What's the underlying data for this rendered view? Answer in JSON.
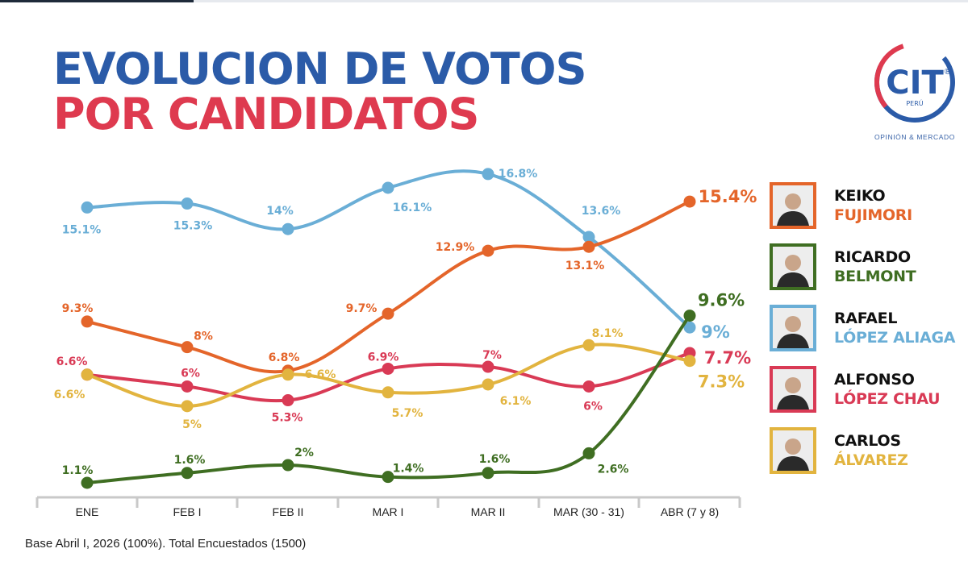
{
  "title": {
    "line1": "EVOLUCION DE VOTOS",
    "line2": "POR CANDIDATOS",
    "line1_color": "#2b5ba8",
    "line2_color": "#de3a4f"
  },
  "logo": {
    "text": "CIT",
    "registered": "®",
    "sub": "PERÚ",
    "tagline": "OPINIÓN & MERCADO"
  },
  "chart_data": {
    "type": "line",
    "categories": [
      "ENE",
      "FEB I",
      "FEB II",
      "MAR I",
      "MAR II",
      "MAR (30 - 31)",
      "ABR (7 y 8)"
    ],
    "series": [
      {
        "name": "RAFAEL LÓPEZ ALIAGA",
        "color": "#6aaed6",
        "values": [
          15.1,
          15.3,
          14,
          16.1,
          16.8,
          13.6,
          9
        ],
        "labels": [
          "15.1%",
          "15.3%",
          "14%",
          "16.1%",
          "16.8%",
          "13.6%",
          "9%"
        ]
      },
      {
        "name": "KEIKO FUJIMORI",
        "color": "#e4652a",
        "values": [
          9.3,
          8,
          6.8,
          9.7,
          12.9,
          13.1,
          15.4
        ],
        "labels": [
          "9.3%",
          "8%",
          "6.8%",
          "9.7%",
          "12.9%",
          "13.1%",
          "15.4%"
        ]
      },
      {
        "name": "ALFONSO LÓPEZ CHAU",
        "color": "#d93a55",
        "values": [
          6.6,
          6,
          5.3,
          6.9,
          7,
          6,
          7.7
        ],
        "labels": [
          "6.6%",
          "6%",
          "5.3%",
          "6.9%",
          "7%",
          "6%",
          "7.7%"
        ]
      },
      {
        "name": "CARLOS ÁLVAREZ",
        "color": "#e2b43f",
        "values": [
          6.6,
          5,
          6.6,
          5.7,
          6.1,
          8.1,
          7.3
        ],
        "labels": [
          "6.6%",
          "5%",
          "6.6%",
          "5.7%",
          "6.1%",
          "8.1%",
          "7.3%"
        ]
      },
      {
        "name": "RICARDO BELMONT",
        "color": "#3f6e22",
        "values": [
          1.1,
          1.6,
          2,
          1.4,
          1.6,
          2.6,
          9.6
        ],
        "labels": [
          "1.1%",
          "1.6%",
          "2%",
          "1.4%",
          "1.6%",
          "2.6%",
          "9.6%"
        ]
      }
    ]
  },
  "legend": [
    {
      "first": "KEIKO",
      "last": "FUJIMORI",
      "color": "#e4652a"
    },
    {
      "first": "RICARDO",
      "last": "BELMONT",
      "color": "#3f6e22"
    },
    {
      "first": "RAFAEL",
      "last": "LÓPEZ ALIAGA",
      "color": "#6aaed6"
    },
    {
      "first": "ALFONSO",
      "last": "LÓPEZ CHAU",
      "color": "#d93a55"
    },
    {
      "first": "CARLOS",
      "last": "ÁLVAREZ",
      "color": "#e2b43f"
    }
  ],
  "footnote": "Base Abril I, 2026  (100%). Total Encuestados (1500)"
}
